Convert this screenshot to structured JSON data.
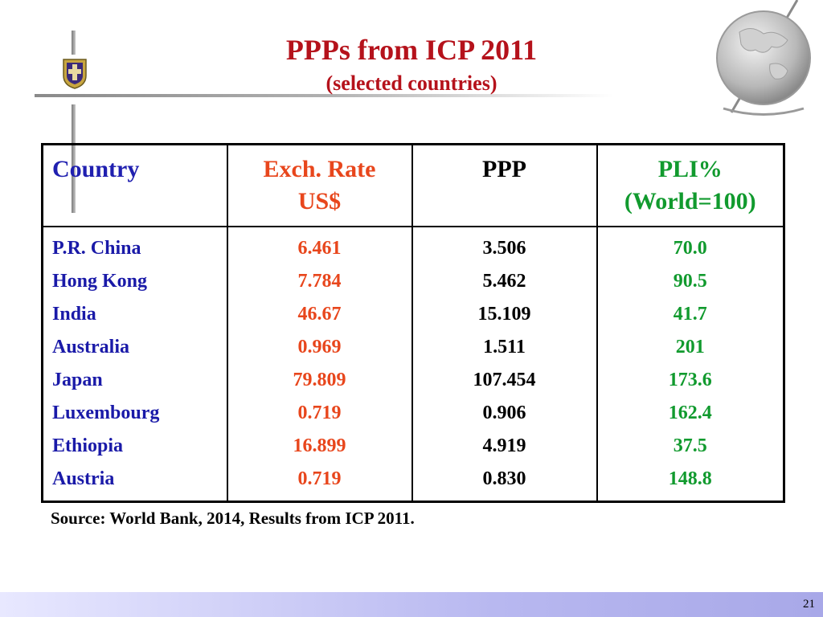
{
  "slide": {
    "title": "PPPs from ICP 2011",
    "subtitle": "(selected countries)",
    "source": "Source: World Bank, 2014, Results from ICP 2011.",
    "page_number": "21"
  },
  "table": {
    "headers": {
      "country": "Country",
      "rate_line1": "Exch. Rate",
      "rate_line2": "US$",
      "ppp": "PPP",
      "pli_line1": "PLI%",
      "pli_line2": "(World=100)"
    },
    "rows": [
      {
        "country": "P.R. China",
        "rate": "6.461",
        "ppp": "3.506",
        "pli": "70.0"
      },
      {
        "country": "Hong Kong",
        "rate": "7.784",
        "ppp": "5.462",
        "pli": "90.5"
      },
      {
        "country": "India",
        "rate": "46.67",
        "ppp": "15.109",
        "pli": "41.7"
      },
      {
        "country": "Australia",
        "rate": "0.969",
        "ppp": "1.511",
        "pli": "201"
      },
      {
        "country": "Japan",
        "rate": "79.809",
        "ppp": "107.454",
        "pli": "173.6"
      },
      {
        "country": "Luxembourg",
        "rate": "0.719",
        "ppp": "0.906",
        "pli": "162.4"
      },
      {
        "country": "Ethiopia",
        "rate": "16.899",
        "ppp": "4.919",
        "pli": "37.5"
      },
      {
        "country": "Austria",
        "rate": "0.719",
        "ppp": "0.830",
        "pli": "148.8"
      }
    ]
  },
  "colors": {
    "title": "#b5121b",
    "country": "#1a1aa8",
    "exchange_rate": "#e8461c",
    "ppp": "#000000",
    "pli": "#119a2e"
  },
  "icons": {
    "crest": "university-crest-icon",
    "globe": "globe-icon"
  }
}
